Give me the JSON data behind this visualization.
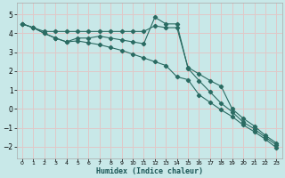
{
  "xlabel": "Humidex (Indice chaleur)",
  "bg_color": "#c8e8e8",
  "grid_color": "#e0c8c8",
  "line_color": "#2a6b62",
  "xlim": [
    -0.5,
    23.5
  ],
  "ylim": [
    -2.6,
    5.6
  ],
  "yticks": [
    -2,
    -1,
    0,
    1,
    2,
    3,
    4,
    5
  ],
  "xticks": [
    0,
    1,
    2,
    3,
    4,
    5,
    6,
    7,
    8,
    9,
    10,
    11,
    12,
    13,
    14,
    15,
    16,
    17,
    18,
    19,
    20,
    21,
    22,
    23
  ],
  "line1_x": [
    0,
    1,
    2,
    3,
    4,
    5,
    6,
    7,
    8,
    9,
    10,
    11,
    12,
    13,
    14,
    15,
    16,
    17,
    18,
    19,
    20,
    21,
    22,
    23
  ],
  "line1_y": [
    4.5,
    4.3,
    4.1,
    4.1,
    4.1,
    4.1,
    4.1,
    4.1,
    4.1,
    4.1,
    4.1,
    4.1,
    4.4,
    4.3,
    4.3,
    2.2,
    1.85,
    1.5,
    1.2,
    0.0,
    -0.5,
    -0.9,
    -1.4,
    -1.8
  ],
  "line2_x": [
    0,
    1,
    2,
    3,
    4,
    5,
    6,
    7,
    8,
    9,
    10,
    11,
    12,
    13,
    14,
    15,
    16,
    17,
    18,
    19,
    20,
    21,
    22,
    23
  ],
  "line2_y": [
    4.5,
    4.3,
    4.0,
    3.75,
    3.55,
    3.75,
    3.75,
    3.85,
    3.75,
    3.65,
    3.55,
    3.45,
    4.85,
    4.5,
    4.5,
    2.15,
    1.5,
    0.9,
    0.3,
    -0.15,
    -0.7,
    -1.05,
    -1.5,
    -1.9
  ],
  "line3_x": [
    0,
    1,
    2,
    3,
    4,
    5,
    6,
    7,
    8,
    9,
    10,
    11,
    12,
    13,
    14,
    15,
    16,
    17,
    18,
    19,
    20,
    21,
    22,
    23
  ],
  "line3_y": [
    4.5,
    4.3,
    4.0,
    3.75,
    3.55,
    3.6,
    3.5,
    3.4,
    3.25,
    3.1,
    2.9,
    2.7,
    2.5,
    2.3,
    1.7,
    1.55,
    0.75,
    0.35,
    -0.05,
    -0.4,
    -0.85,
    -1.2,
    -1.6,
    -2.05
  ]
}
